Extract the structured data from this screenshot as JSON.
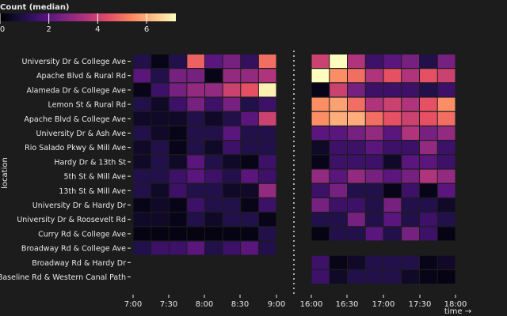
{
  "chart_data": {
    "type": "heatmap",
    "title": "",
    "legend": {
      "title": "Count (median)",
      "ticks": [
        0,
        2,
        4,
        6
      ],
      "range": [
        0,
        7.2
      ],
      "placement": "top-left"
    },
    "ylabel": "location",
    "xlabel": "time →",
    "x_ticks": [
      "7:00",
      "7:30",
      "8:00",
      "8:30",
      "9:00",
      "16:00",
      "16:30",
      "17:00",
      "17:30",
      "18:00"
    ],
    "morning_slots": [
      "7:00",
      "7:15",
      "7:30",
      "7:45",
      "8:00",
      "8:15",
      "8:30",
      "8:45"
    ],
    "evening_slots": [
      "16:00",
      "16:15",
      "16:30",
      "16:45",
      "17:00",
      "17:15",
      "17:30",
      "17:45"
    ],
    "locations": [
      "University Dr & College Ave",
      "Apache Blvd & Rural Rd",
      "Alameda Dr & College Ave",
      "Lemon St & Rural Rd",
      "Apache Blvd & College Ave",
      "University Dr & Ash Ave",
      "Rio Salado Pkwy & Mill Ave",
      "Hardy Dr & 13th St",
      "5th St & Mill Ave",
      "13th St & Mill Ave",
      "University Dr & Hardy Dr",
      "University Dr & Roosevelt Rd",
      "Curry Rd & College Ave",
      "Broadway Rd & College Ave",
      "Broadway Rd & Hardy Dr",
      "Baseline Rd & Western Canal Path"
    ],
    "morning_values": [
      [
        1.0,
        0.3,
        1.0,
        4.8,
        2.0,
        2.5,
        1.3,
        5.0
      ],
      [
        2.0,
        1.0,
        2.5,
        2.5,
        0.3,
        3.0,
        3.0,
        3.5
      ],
      [
        0.3,
        1.5,
        2.5,
        3.0,
        3.0,
        4.0,
        4.5,
        7.0
      ],
      [
        1.0,
        0.5,
        1.5,
        2.5,
        1.5,
        2.5,
        1.0,
        1.5
      ],
      [
        0.5,
        0.5,
        0.5,
        1.0,
        0.5,
        1.0,
        2.0,
        4.0
      ],
      [
        1.0,
        0.5,
        0.3,
        1.0,
        1.0,
        2.0,
        1.0,
        1.0
      ],
      [
        0.5,
        1.0,
        0.3,
        1.0,
        0.5,
        1.5,
        1.0,
        1.0
      ],
      [
        0.5,
        1.0,
        0.5,
        2.0,
        1.0,
        0.5,
        0.3,
        1.5
      ],
      [
        1.0,
        1.0,
        1.5,
        2.0,
        1.5,
        1.0,
        2.0,
        1.5
      ],
      [
        1.0,
        0.5,
        1.5,
        1.0,
        1.0,
        0.5,
        0.5,
        3.0
      ],
      [
        0.3,
        0.5,
        0.3,
        1.5,
        1.0,
        1.0,
        0.3,
        1.5
      ],
      [
        0.5,
        0.5,
        0.3,
        1.0,
        0.5,
        1.0,
        1.0,
        0.3
      ],
      [
        0.2,
        0.2,
        0.2,
        0.2,
        0.2,
        0.2,
        0.2,
        1.0
      ],
      [
        1.0,
        1.5,
        1.5,
        2.0,
        1.0,
        1.5,
        2.0,
        1.0
      ],
      [
        null,
        null,
        null,
        null,
        null,
        null,
        null,
        null
      ],
      [
        null,
        null,
        null,
        null,
        null,
        null,
        null,
        null
      ]
    ],
    "evening_values": [
      [
        4.0,
        7.2,
        3.5,
        1.5,
        2.0,
        2.5,
        1.0,
        2.5
      ],
      [
        7.2,
        5.5,
        5.0,
        3.5,
        4.5,
        3.5,
        4.5,
        4.0
      ],
      [
        0.3,
        4.0,
        2.5,
        1.5,
        1.5,
        1.5,
        1.0,
        1.5
      ],
      [
        5.5,
        5.8,
        5.0,
        3.5,
        4.0,
        3.5,
        4.5,
        5.5
      ],
      [
        5.5,
        6.0,
        6.0,
        5.0,
        4.5,
        4.0,
        4.5,
        5.0
      ],
      [
        2.0,
        2.0,
        2.5,
        3.0,
        2.0,
        3.5,
        2.5,
        3.0
      ],
      [
        0.5,
        1.5,
        1.5,
        2.0,
        1.5,
        1.5,
        3.0,
        1.5
      ],
      [
        0.3,
        1.5,
        1.5,
        1.5,
        0.5,
        2.0,
        2.0,
        1.5
      ],
      [
        3.0,
        2.0,
        3.0,
        2.5,
        2.0,
        2.5,
        3.5,
        3.0
      ],
      [
        1.5,
        2.5,
        1.0,
        1.0,
        0.3,
        1.5,
        0.3,
        2.0
      ],
      [
        2.5,
        1.5,
        1.5,
        1.0,
        2.5,
        1.0,
        1.0,
        0.5
      ],
      [
        1.0,
        1.0,
        2.5,
        1.0,
        2.0,
        1.0,
        1.5,
        1.0
      ],
      [
        0.2,
        1.0,
        1.0,
        2.0,
        1.0,
        2.5,
        1.5,
        0.2
      ],
      [
        null,
        null,
        null,
        null,
        null,
        null,
        null,
        null
      ],
      [
        1.5,
        0.3,
        0.5,
        1.0,
        1.0,
        1.0,
        0.3,
        0.5
      ],
      [
        1.5,
        0.5,
        1.0,
        1.0,
        1.0,
        0.5,
        0.3,
        0.2
      ]
    ]
  }
}
